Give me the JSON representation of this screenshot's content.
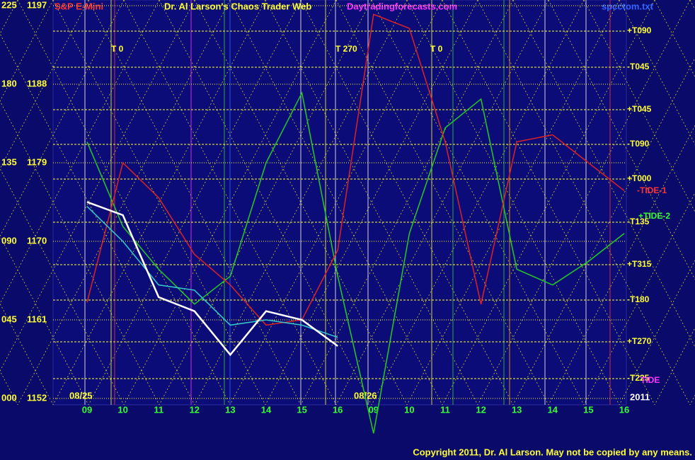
{
  "chart_data": {
    "type": "line",
    "symbol": "S&P E-Mini",
    "title": "Dr. Al Larson's Chaos Trader Web",
    "site": "Daytradingforecasts.com",
    "file": "spcctom.txt",
    "ylim": [
      1152,
      1197
    ],
    "yticks": [
      1197,
      1188,
      1179,
      1170,
      1161,
      1152
    ],
    "angle_labels": [
      "225",
      "180",
      "135",
      "090",
      "045",
      "000"
    ],
    "categories": [
      "09",
      "10",
      "11",
      "12",
      "13",
      "14",
      "15",
      "16",
      "09",
      "10",
      "11",
      "12",
      "13",
      "14",
      "15",
      "16"
    ],
    "dates": [
      "08/25",
      "08/26"
    ],
    "year": "2011",
    "flux_labels": [
      "+T090",
      "-T045",
      "+T045",
      "-T090",
      "+T000",
      "-T135",
      "+T315",
      "-T180",
      "+T270",
      "-T225"
    ],
    "tide_labels": [
      "-TIDE-1",
      "+TIDE-2",
      "TIDE"
    ],
    "time_markers": [
      "T  0",
      "T  270",
      "T  0"
    ],
    "series": [
      {
        "color": "#22cc22",
        "values": [
          1181.4,
          1171.7,
          1166.8,
          1162.8,
          1166,
          1179,
          1187,
          1166,
          1148,
          1170.9,
          1183,
          1186.3,
          1166.8,
          1165,
          1167.7,
          1170.9
        ]
      },
      {
        "color": "#dd2222",
        "values": [
          1163,
          1179,
          1175,
          1168.5,
          1165,
          1160.4,
          1161,
          1169,
          1196,
          1194.4,
          1181.4,
          1162.8,
          1181.4,
          1182.2,
          1179,
          1175.8
        ]
      },
      {
        "color": "#33cccc",
        "values": [
          1174,
          1170,
          1165,
          1164.4,
          1160.4,
          1161,
          1160.4,
          1159,
          null,
          null,
          null,
          null,
          null,
          null,
          null,
          null
        ]
      },
      {
        "color": "#ffffff",
        "values": [
          1174.5,
          1173,
          1163.6,
          1162,
          1157,
          1162,
          1161,
          1158,
          null,
          null,
          null,
          null,
          null,
          null,
          null,
          null
        ]
      }
    ],
    "copyright": "Copyright 2011, Dr. Al Larson. May not be copied by any means."
  }
}
